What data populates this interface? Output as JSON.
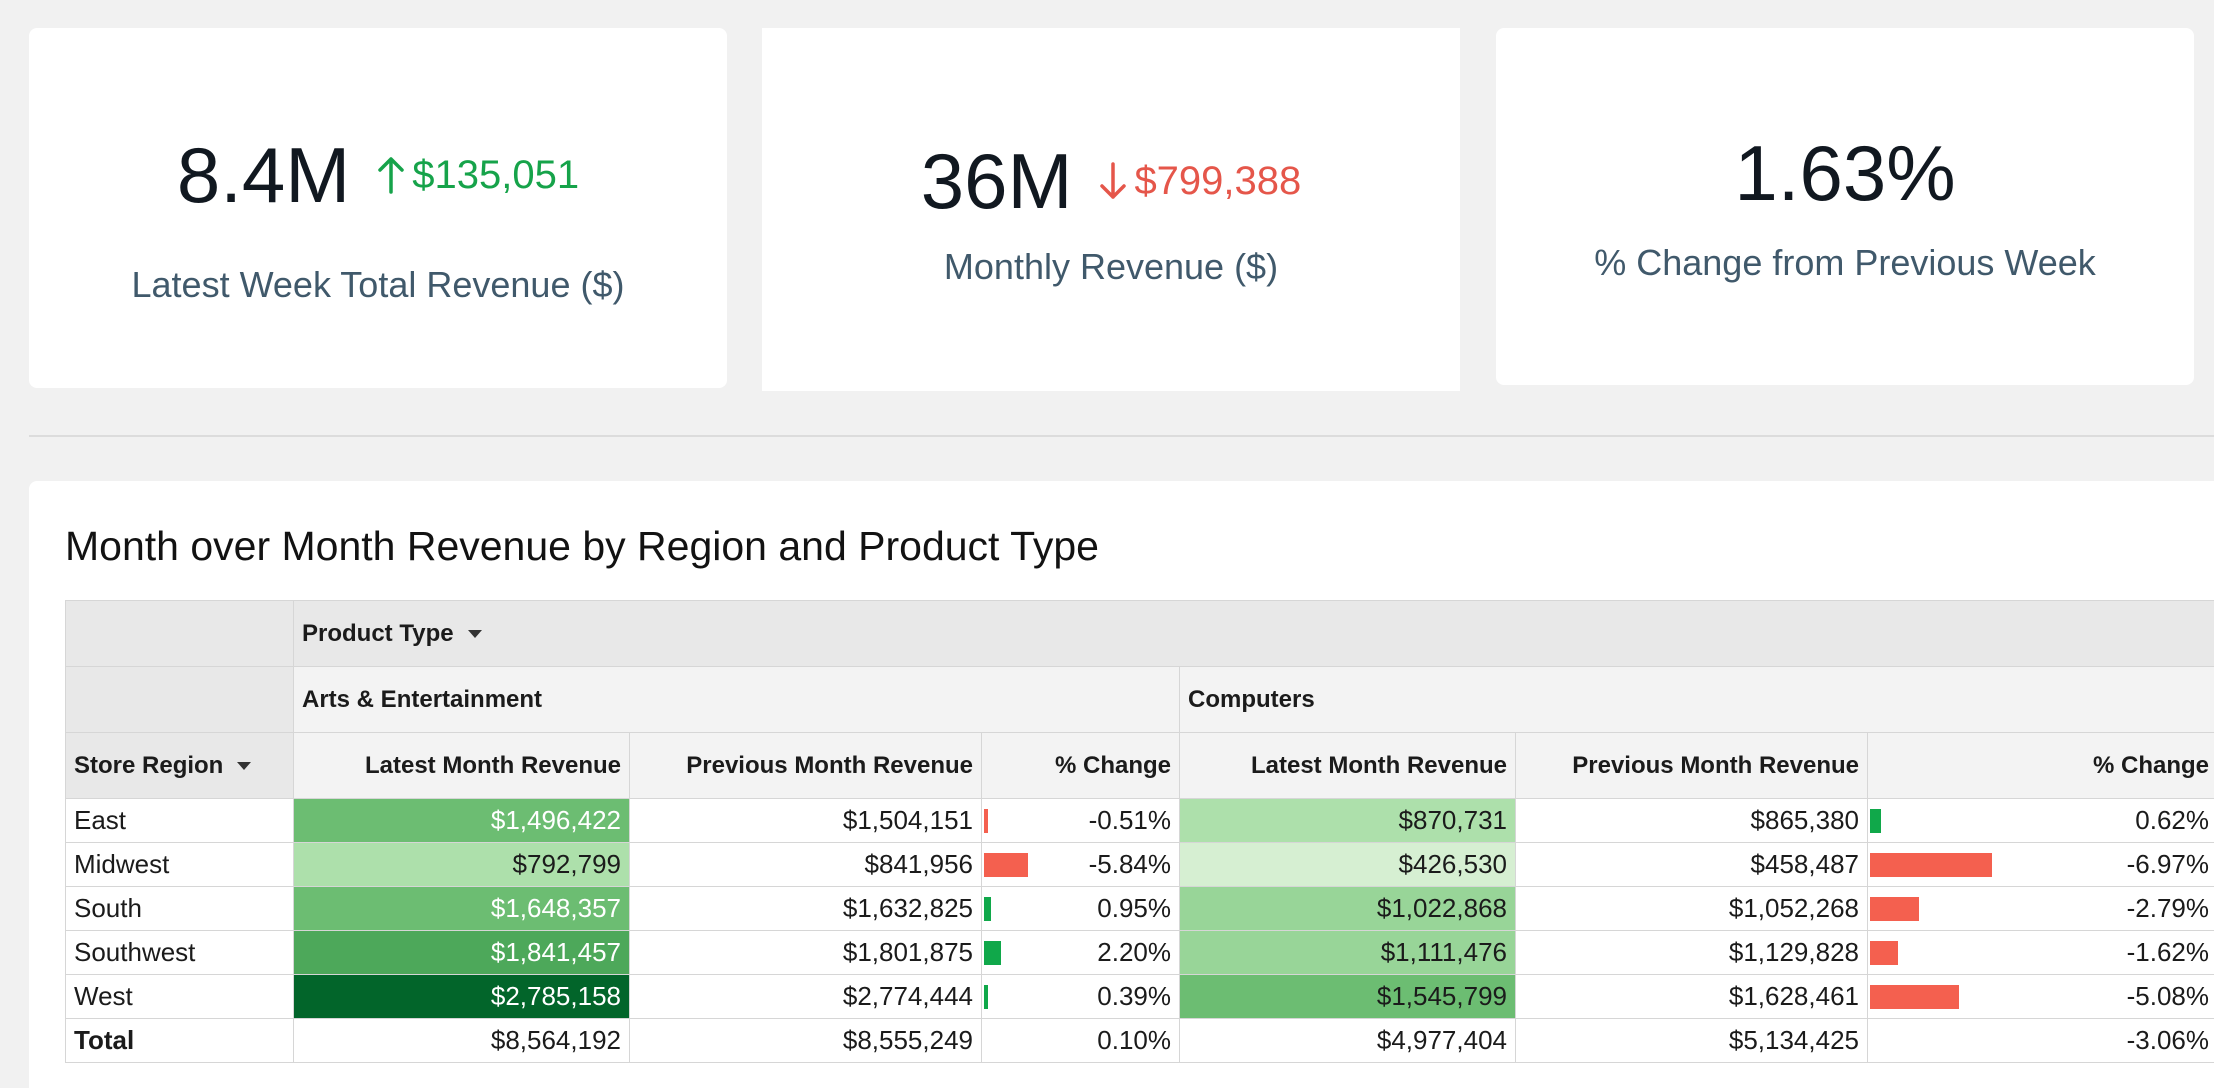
{
  "kpis": [
    {
      "value": "8.4M",
      "delta": "$135,051",
      "delta_direction": "up",
      "label": "Latest Week Total Revenue ($)"
    },
    {
      "value": "36M",
      "delta": "$799,388",
      "delta_direction": "down",
      "label": "Monthly Revenue ($)"
    },
    {
      "value": "1.63%",
      "label": "% Change from Previous Week"
    }
  ],
  "colors": {
    "up": "#16a34a",
    "down": "#e5564a",
    "bar_negative": "#f4604f",
    "bar_positive": "#10a84a"
  },
  "table": {
    "title": "Month over Month Revenue by Region and Product Type",
    "column_group_header": "Product Type",
    "row_header": "Store Region",
    "groups": [
      "Arts & Entertainment",
      "Computers"
    ],
    "measures": [
      "Latest Month Revenue",
      "Previous Month Revenue",
      "% Change"
    ],
    "rows": [
      {
        "region": "East",
        "ae_latest": "$1,496,422",
        "ae_prev": "$1,504,151",
        "ae_pct": "-0.51%",
        "ae_pct_value": -0.51,
        "c_latest": "$870,731",
        "c_prev": "$865,380",
        "c_pct": "0.62%",
        "c_pct_value": 0.62
      },
      {
        "region": "Midwest",
        "ae_latest": "$792,799",
        "ae_prev": "$841,956",
        "ae_pct": "-5.84%",
        "ae_pct_value": -5.84,
        "c_latest": "$426,530",
        "c_prev": "$458,487",
        "c_pct": "-6.97%",
        "c_pct_value": -6.97
      },
      {
        "region": "South",
        "ae_latest": "$1,648,357",
        "ae_prev": "$1,632,825",
        "ae_pct": "0.95%",
        "ae_pct_value": 0.95,
        "c_latest": "$1,022,868",
        "c_prev": "$1,052,268",
        "c_pct": "-2.79%",
        "c_pct_value": -2.79
      },
      {
        "region": "Southwest",
        "ae_latest": "$1,841,457",
        "ae_prev": "$1,801,875",
        "ae_pct": "2.20%",
        "ae_pct_value": 2.2,
        "c_latest": "$1,111,476",
        "c_prev": "$1,129,828",
        "c_pct": "-1.62%",
        "c_pct_value": -1.62
      },
      {
        "region": "West",
        "ae_latest": "$2,785,158",
        "ae_prev": "$2,774,444",
        "ae_pct": "0.39%",
        "ae_pct_value": 0.39,
        "c_latest": "$1,545,799",
        "c_prev": "$1,628,461",
        "c_pct": "-5.08%",
        "c_pct_value": -5.08
      }
    ],
    "total": {
      "label": "Total",
      "ae_latest": "$8,564,192",
      "ae_prev": "$8,555,249",
      "ae_pct": "0.10%",
      "c_latest": "$4,977,404",
      "c_prev": "$5,134,425",
      "c_pct": "-3.06%"
    },
    "heat": {
      "ae": [
        "#6cbd72",
        "#ade0ab",
        "#6cbd72",
        "#4da85a",
        "#02652a"
      ],
      "c": [
        "#ade0ab",
        "#d6efd2",
        "#98d598",
        "#98d598",
        "#6cbd72"
      ]
    }
  }
}
